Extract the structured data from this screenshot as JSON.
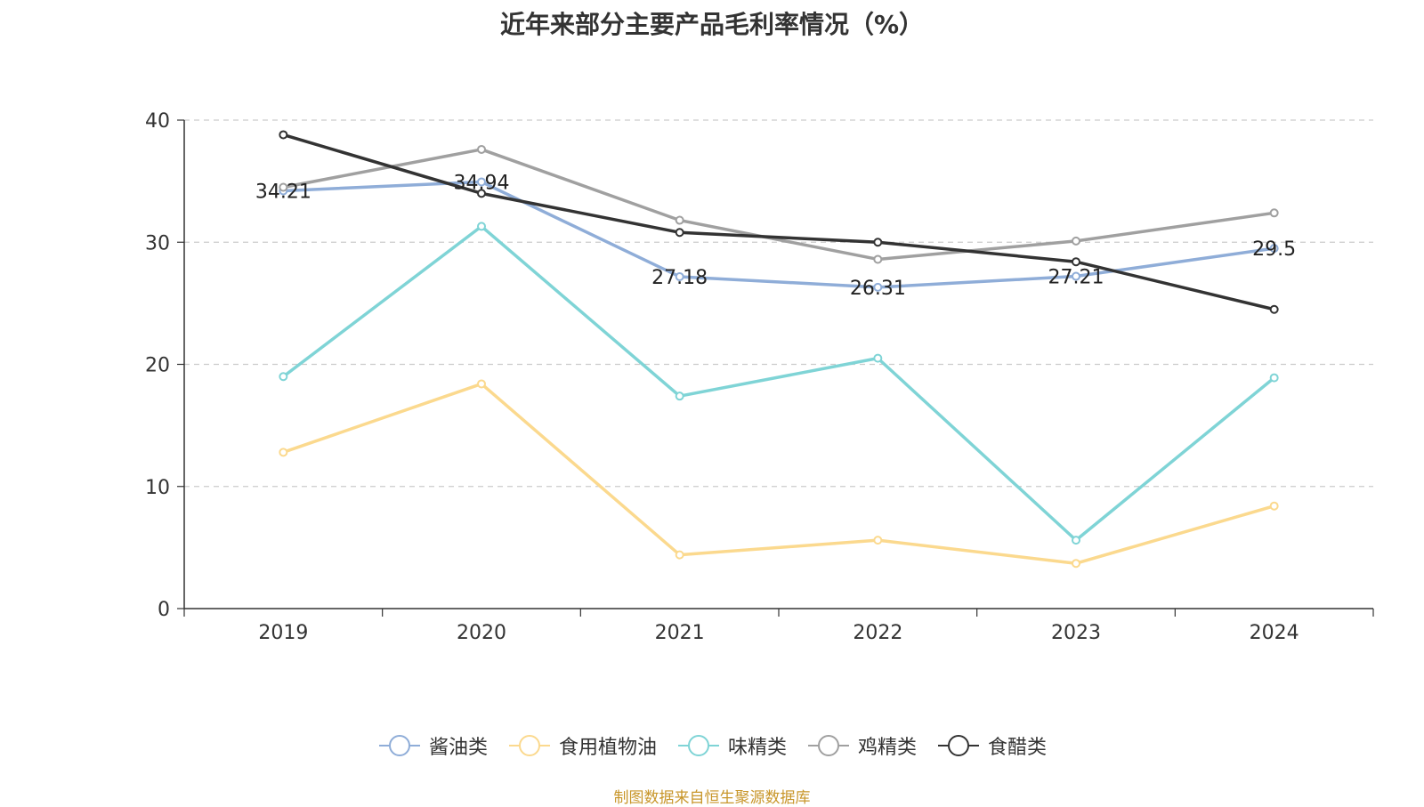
{
  "chart_data": {
    "type": "line",
    "title": "近年来部分主要产品毛利率情况（%）",
    "x": [
      "2019",
      "2020",
      "2021",
      "2022",
      "2023",
      "2024"
    ],
    "ylim": [
      0,
      40
    ],
    "yticks": [
      0,
      10,
      20,
      30,
      40
    ],
    "grid": true,
    "legend_position": "bottom",
    "series": [
      {
        "name": "酱油类",
        "color": "#8fadd8",
        "values": [
          34.21,
          34.94,
          27.18,
          26.31,
          27.21,
          29.5
        ],
        "show_labels": true
      },
      {
        "name": "食用植物油",
        "color": "#fbd98e",
        "values": [
          12.8,
          18.4,
          4.4,
          5.6,
          3.7,
          8.4
        ],
        "show_labels": false
      },
      {
        "name": "味精类",
        "color": "#7fd4d6",
        "values": [
          19.0,
          31.3,
          17.4,
          20.5,
          5.6,
          18.9
        ],
        "show_labels": false
      },
      {
        "name": "鸡精类",
        "color": "#a0a0a0",
        "values": [
          34.5,
          37.6,
          31.8,
          28.6,
          30.1,
          32.4
        ],
        "show_labels": false
      },
      {
        "name": "食醋类",
        "color": "#333333",
        "values": [
          38.8,
          34.0,
          30.8,
          30.0,
          28.4,
          24.5
        ],
        "show_labels": false
      }
    ]
  },
  "source_note": "制图数据来自恒生聚源数据库"
}
